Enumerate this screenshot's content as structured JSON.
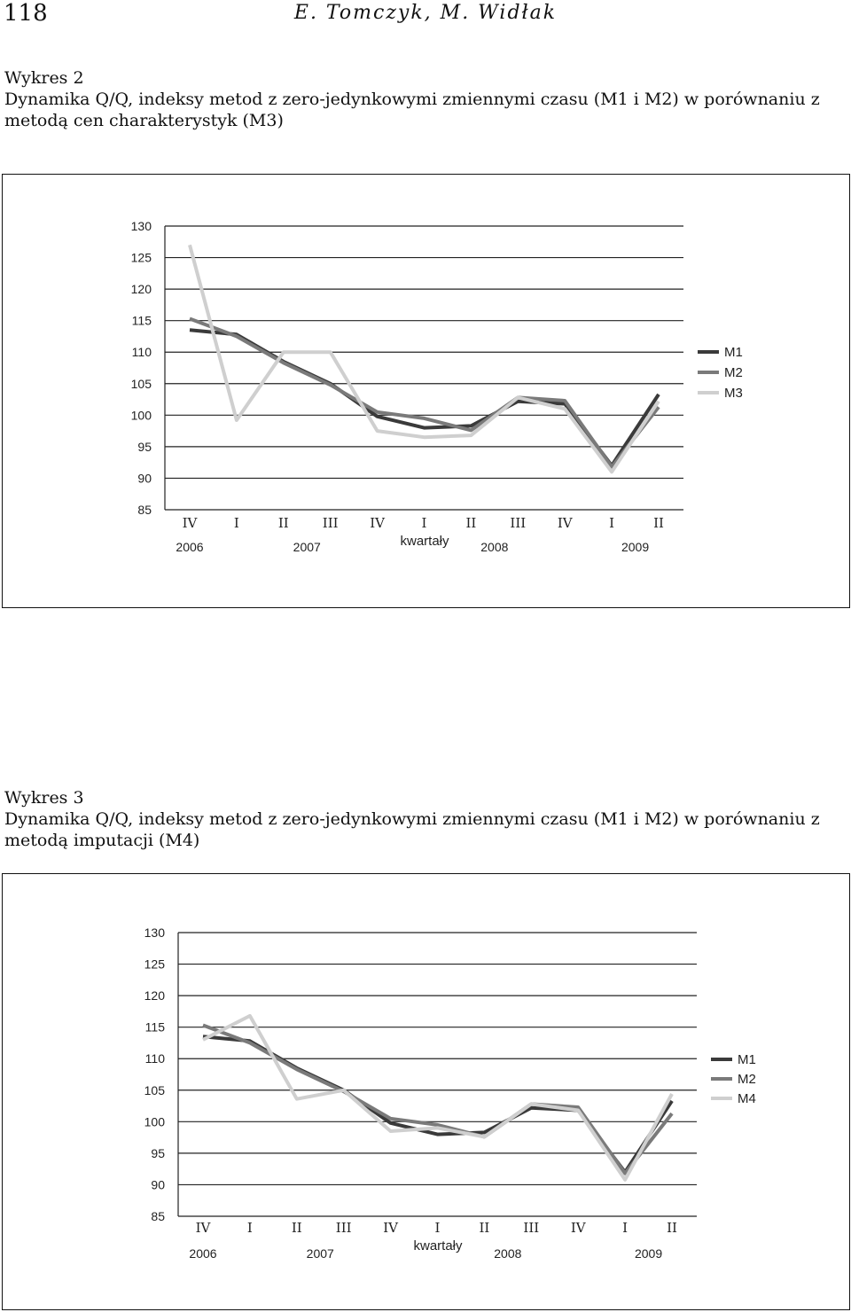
{
  "header": {
    "page_number": "118",
    "running_head": "E. Tomczyk, M. Widłak"
  },
  "figures": [
    {
      "number": "Wykres 2",
      "caption": "Dynamika Q/Q, indeksy metod z zero-jedynkowymi zmiennymi czasu (M1 i M2) w porównaniu z metodą cen charakterystyk (M3)"
    },
    {
      "number": "Wykres 3",
      "caption": "Dynamika Q/Q, indeksy metod z zero-jedynkowymi zmiennymi czasu (M1 i M2) w porównaniu z metodą imputacji (M4)"
    }
  ],
  "chart_data": [
    {
      "type": "line",
      "xlabel": "kwartały",
      "ylabel": "",
      "ylim": [
        85,
        130
      ],
      "yticks": [
        85,
        90,
        95,
        100,
        105,
        110,
        115,
        120,
        125,
        130
      ],
      "categories": [
        "IV",
        "I",
        "II",
        "III",
        "IV",
        "I",
        "II",
        "III",
        "IV",
        "I",
        "II"
      ],
      "years": [
        {
          "label": "2006",
          "start": 0,
          "end": 0
        },
        {
          "label": "2007",
          "start": 1,
          "end": 4
        },
        {
          "label": "2008",
          "start": 5,
          "end": 8
        },
        {
          "label": "2009",
          "start": 9,
          "end": 10
        }
      ],
      "grid": true,
      "legend_position": "right",
      "series": [
        {
          "name": "M1",
          "color": "#3a3a3a",
          "values": [
            113.5,
            112.8,
            108.5,
            105.0,
            99.8,
            98.0,
            98.3,
            102.2,
            101.8,
            92.0,
            103.3
          ]
        },
        {
          "name": "M2",
          "color": "#7a7a7a",
          "values": [
            115.3,
            112.5,
            108.3,
            104.8,
            100.5,
            99.5,
            97.6,
            102.8,
            102.3,
            91.8,
            101.3
          ]
        },
        {
          "name": "M3",
          "color": "#cfcfcf",
          "values": [
            127.0,
            99.2,
            110.0,
            110.0,
            97.5,
            96.5,
            96.8,
            102.8,
            101.0,
            91.0,
            102.2
          ]
        }
      ]
    },
    {
      "type": "line",
      "xlabel": "kwartały",
      "ylabel": "",
      "ylim": [
        85,
        130
      ],
      "yticks": [
        85,
        90,
        95,
        100,
        105,
        110,
        115,
        120,
        125,
        130
      ],
      "categories": [
        "IV",
        "I",
        "II",
        "III",
        "IV",
        "I",
        "II",
        "III",
        "IV",
        "I",
        "II"
      ],
      "years": [
        {
          "label": "2006",
          "start": 0,
          "end": 0
        },
        {
          "label": "2007",
          "start": 1,
          "end": 4
        },
        {
          "label": "2008",
          "start": 5,
          "end": 8
        },
        {
          "label": "2009",
          "start": 9,
          "end": 10
        }
      ],
      "grid": true,
      "legend_position": "right",
      "series": [
        {
          "name": "M1",
          "color": "#3a3a3a",
          "values": [
            113.5,
            112.8,
            108.5,
            105.0,
            99.8,
            98.0,
            98.3,
            102.2,
            101.8,
            92.0,
            103.3
          ]
        },
        {
          "name": "M2",
          "color": "#7a7a7a",
          "values": [
            115.3,
            112.5,
            108.3,
            104.8,
            100.5,
            99.5,
            97.6,
            102.8,
            102.3,
            91.8,
            101.3
          ]
        },
        {
          "name": "M4",
          "color": "#cfcfcf",
          "values": [
            113.0,
            116.8,
            103.6,
            105.0,
            98.5,
            99.0,
            97.6,
            102.8,
            101.8,
            90.8,
            104.4
          ]
        }
      ]
    }
  ]
}
